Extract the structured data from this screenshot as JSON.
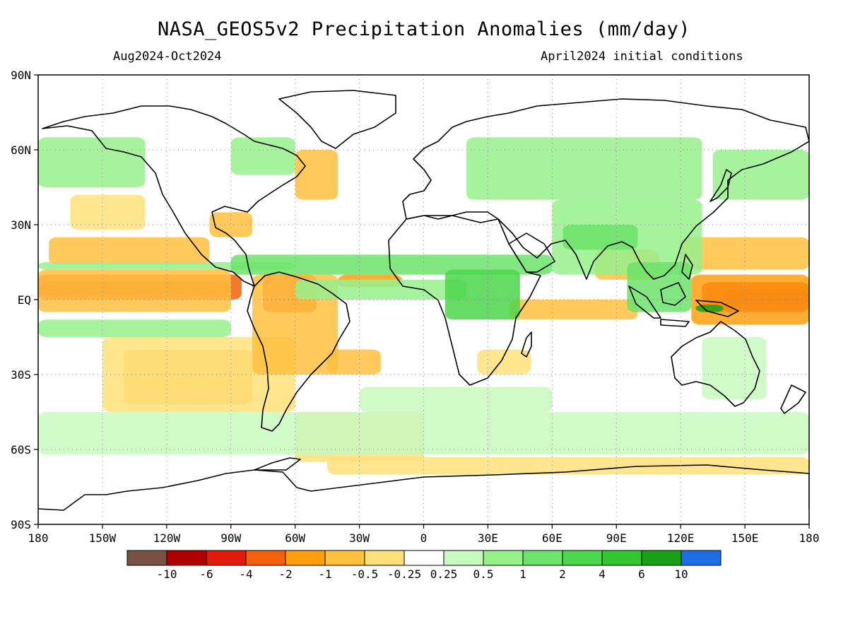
{
  "title": "NASA_GEOS5v2 Precipitation Anomalies (mm/day)",
  "subtitle_left": "Aug2024-Oct2024",
  "subtitle_right": "April2024 initial conditions",
  "axes": {
    "lat_labels": [
      {
        "lat": 90,
        "label": "90N"
      },
      {
        "lat": 60,
        "label": "60N"
      },
      {
        "lat": 30,
        "label": "30N"
      },
      {
        "lat": 0,
        "label": "EQ"
      },
      {
        "lat": -30,
        "label": "30S"
      },
      {
        "lat": -60,
        "label": "60S"
      },
      {
        "lat": -90,
        "label": "90S"
      }
    ],
    "lon_labels": [
      {
        "lon": -180,
        "label": "180"
      },
      {
        "lon": -150,
        "label": "150W"
      },
      {
        "lon": -120,
        "label": "120W"
      },
      {
        "lon": -90,
        "label": "90W"
      },
      {
        "lon": -60,
        "label": "60W"
      },
      {
        "lon": -30,
        "label": "30W"
      },
      {
        "lon": 0,
        "label": "0"
      },
      {
        "lon": 30,
        "label": "30E"
      },
      {
        "lon": 60,
        "label": "60E"
      },
      {
        "lon": 90,
        "label": "90E"
      },
      {
        "lon": 120,
        "label": "120E"
      },
      {
        "lon": 150,
        "label": "150E"
      },
      {
        "lon": 180,
        "label": "180"
      }
    ],
    "lon_range": [
      -180,
      180
    ],
    "lat_range": [
      -90,
      90
    ]
  },
  "colorbar": {
    "colors": [
      "#7a5145",
      "#b00000",
      "#e11a0a",
      "#f5600a",
      "#ff9f0f",
      "#ffc040",
      "#ffe07a",
      "#ffffff",
      "#c8f9be",
      "#96f08c",
      "#6ce36a",
      "#4bd64b",
      "#32c632",
      "#18a018",
      "#1e6ee6"
    ],
    "labels": [
      "-10",
      "-6",
      "-4",
      "-2",
      "-1",
      "-0.5",
      "-0.25",
      "0.25",
      "0.5",
      "1",
      "2",
      "4",
      "6",
      "10"
    ]
  },
  "anomaly_regions": [
    {
      "level": 1,
      "lon": [
        -180,
        -90
      ],
      "lat": [
        2,
        7
      ]
    },
    {
      "level": 0,
      "lon": [
        -170,
        -105
      ],
      "lat": [
        3,
        6
      ]
    },
    {
      "level": 3,
      "lon": [
        -180,
        -85
      ],
      "lat": [
        0,
        10
      ]
    },
    {
      "level": 5,
      "lon": [
        -180,
        -90
      ],
      "lat": [
        -5,
        12
      ]
    },
    {
      "level": 5,
      "lon": [
        -175,
        -100
      ],
      "lat": [
        14,
        25
      ]
    },
    {
      "level": 6,
      "lon": [
        -165,
        -130
      ],
      "lat": [
        28,
        42
      ]
    },
    {
      "level": 5,
      "lon": [
        -140,
        -80
      ],
      "lat": [
        -42,
        -20
      ]
    },
    {
      "level": 6,
      "lon": [
        -150,
        -60
      ],
      "lat": [
        -45,
        -15
      ]
    },
    {
      "level": 3,
      "lon": [
        -75,
        -50
      ],
      "lat": [
        -5,
        10
      ]
    },
    {
      "level": 5,
      "lon": [
        -80,
        -40
      ],
      "lat": [
        -30,
        10
      ]
    },
    {
      "level": 5,
      "lon": [
        -45,
        -20
      ],
      "lat": [
        -30,
        -20
      ]
    },
    {
      "level": 6,
      "lon": [
        -60,
        0
      ],
      "lat": [
        -65,
        -45
      ]
    },
    {
      "level": 6,
      "lon": [
        -45,
        180
      ],
      "lat": [
        -70,
        -63
      ]
    },
    {
      "level": 5,
      "lon": [
        -60,
        -40
      ],
      "lat": [
        40,
        60
      ]
    },
    {
      "level": 5,
      "lon": [
        -100,
        -80
      ],
      "lat": [
        25,
        35
      ]
    },
    {
      "level": 4,
      "lon": [
        -40,
        -10
      ],
      "lat": [
        5,
        10
      ]
    },
    {
      "level": 0,
      "lon": [
        140,
        180
      ],
      "lat": [
        -2,
        4
      ]
    },
    {
      "level": 2,
      "lon": [
        130,
        180
      ],
      "lat": [
        -5,
        7
      ]
    },
    {
      "level": 4,
      "lon": [
        125,
        180
      ],
      "lat": [
        -10,
        10
      ]
    },
    {
      "level": 5,
      "lon": [
        120,
        180
      ],
      "lat": [
        12,
        25
      ]
    },
    {
      "level": 5,
      "lon": [
        80,
        110
      ],
      "lat": [
        8,
        20
      ]
    },
    {
      "level": 5,
      "lon": [
        40,
        100
      ],
      "lat": [
        -8,
        0
      ]
    },
    {
      "level": 6,
      "lon": [
        25,
        50
      ],
      "lat": [
        -30,
        -20
      ]
    },
    {
      "level": 9,
      "lon": [
        -180,
        -90
      ],
      "lat": [
        -15,
        -8
      ]
    },
    {
      "level": 9,
      "lon": [
        -180,
        -60
      ],
      "lat": [
        12,
        15
      ]
    },
    {
      "level": 10,
      "lon": [
        -90,
        60
      ],
      "lat": [
        10,
        18
      ]
    },
    {
      "level": 9,
      "lon": [
        -60,
        20
      ],
      "lat": [
        0,
        8
      ]
    },
    {
      "level": 11,
      "lon": [
        10,
        45
      ],
      "lat": [
        -8,
        12
      ]
    },
    {
      "level": 9,
      "lon": [
        60,
        130
      ],
      "lat": [
        10,
        40
      ]
    },
    {
      "level": 10,
      "lon": [
        65,
        100
      ],
      "lat": [
        20,
        30
      ]
    },
    {
      "level": 10,
      "lon": [
        95,
        125
      ],
      "lat": [
        -5,
        15
      ]
    },
    {
      "level": 9,
      "lon": [
        20,
        130
      ],
      "lat": [
        40,
        65
      ]
    },
    {
      "level": 9,
      "lon": [
        -180,
        -130
      ],
      "lat": [
        45,
        65
      ]
    },
    {
      "level": 9,
      "lon": [
        -90,
        -60
      ],
      "lat": [
        50,
        65
      ]
    },
    {
      "level": 8,
      "lon": [
        -180,
        180
      ],
      "lat": [
        -62,
        -45
      ]
    },
    {
      "level": 9,
      "lon": [
        135,
        180
      ],
      "lat": [
        40,
        60
      ]
    },
    {
      "level": 8,
      "lon": [
        -30,
        60
      ],
      "lat": [
        -45,
        -35
      ]
    },
    {
      "level": 8,
      "lon": [
        130,
        160
      ],
      "lat": [
        -40,
        -15
      ]
    },
    {
      "level": 13,
      "lon": [
        127,
        140
      ],
      "lat": [
        -5,
        -2
      ]
    }
  ]
}
